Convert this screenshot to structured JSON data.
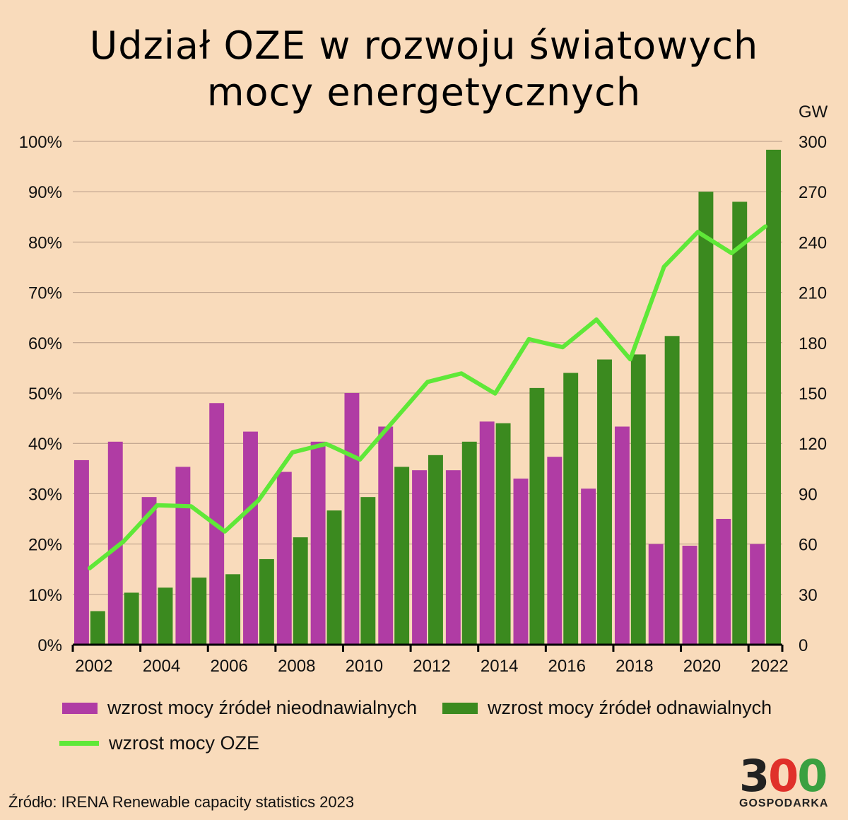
{
  "title_line1": "Udział OZE w rozwoju światowych",
  "title_line2": "mocy energetycznych",
  "source": "Źródło: IRENA Renewable capacity statistics 2023",
  "logo": {
    "digit1": "3",
    "digit2": "0",
    "digit3": "0",
    "text": "GOSPODARKA"
  },
  "colors": {
    "nonrenewable": "#b03ca4",
    "renewable": "#3b8a1f",
    "share": "#5fe838",
    "grid": "#b59a86"
  },
  "chart_data": {
    "type": "bar",
    "title": "Udział OZE w rozwoju światowych mocy energetycznych",
    "categories": [
      "2002",
      "2003",
      "2004",
      "2005",
      "2006",
      "2007",
      "2008",
      "2009",
      "2010",
      "2011",
      "2012",
      "2013",
      "2014",
      "2015",
      "2016",
      "2017",
      "2018",
      "2019",
      "2020",
      "2021",
      "2022"
    ],
    "x_tick_labels": [
      "2002",
      "2004",
      "2006",
      "2008",
      "2010",
      "2012",
      "2014",
      "2016",
      "2018",
      "2020",
      "2022"
    ],
    "y_left": {
      "label": "",
      "range": [
        0,
        100
      ],
      "ticks": [
        "0%",
        "10%",
        "20%",
        "30%",
        "40%",
        "50%",
        "60%",
        "70%",
        "80%",
        "90%",
        "100%"
      ]
    },
    "y_right": {
      "label": "GW",
      "range": [
        0,
        300
      ],
      "ticks": [
        "0",
        "30",
        "60",
        "90",
        "120",
        "150",
        "180",
        "210",
        "240",
        "270",
        "300"
      ]
    },
    "grid": true,
    "legend_placement": "bottom",
    "series": [
      {
        "name": "wzrost mocy źródeł nieodnawialnych",
        "type": "bar",
        "axis": "right",
        "values": [
          110,
          121,
          88,
          106,
          144,
          127,
          103,
          121,
          150,
          130,
          104,
          104,
          133,
          99,
          112,
          93,
          130,
          60,
          59,
          75,
          60
        ]
      },
      {
        "name": "wzrost mocy źródeł odnawialnych",
        "type": "bar",
        "axis": "right",
        "values": [
          20,
          31,
          34,
          40,
          42,
          51,
          64,
          80,
          88,
          106,
          113,
          121,
          132,
          153,
          162,
          170,
          173,
          184,
          270,
          264,
          295
        ]
      },
      {
        "name": "wzrost mocy OZE",
        "type": "line",
        "axis": "left",
        "values": [
          15.2,
          20.5,
          27.7,
          27.5,
          22.5,
          28.7,
          38.2,
          39.9,
          36.8,
          44.5,
          52.2,
          53.9,
          49.9,
          60.7,
          59.1,
          64.6,
          56.7,
          75.1,
          82.0,
          77.8,
          83.1
        ]
      }
    ]
  }
}
